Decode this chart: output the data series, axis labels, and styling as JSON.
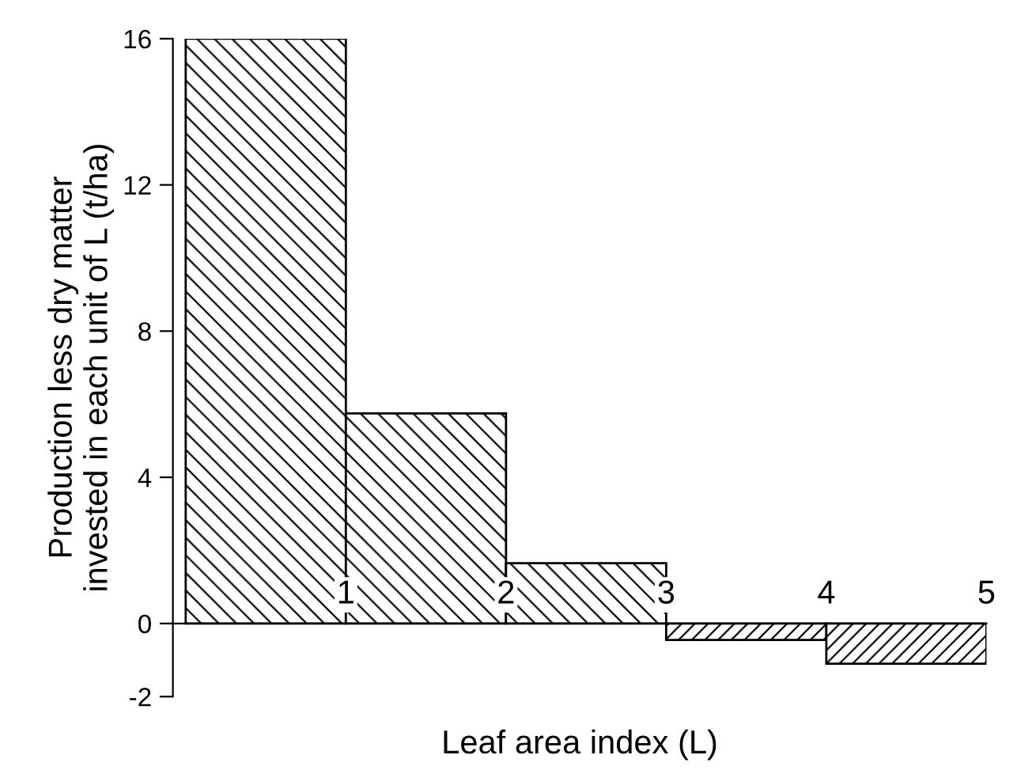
{
  "chart_data": {
    "type": "histogram",
    "xlabel": "Leaf area index (L)",
    "ylabel": "Production less dry matter\ninvested in each unit of L (t/ha)",
    "bins": [
      0,
      1,
      2,
      3,
      4,
      5
    ],
    "values": [
      16,
      5.75,
      1.65,
      -0.45,
      -1.1
    ],
    "color": "#000000",
    "xlim": [
      -0.08,
      5
    ],
    "ylim": [
      -2,
      16
    ],
    "xticks": [
      1,
      2,
      3,
      4,
      5
    ],
    "yticks": [
      -2,
      0,
      4,
      8,
      12,
      16
    ],
    "grid": false,
    "legend": false
  }
}
